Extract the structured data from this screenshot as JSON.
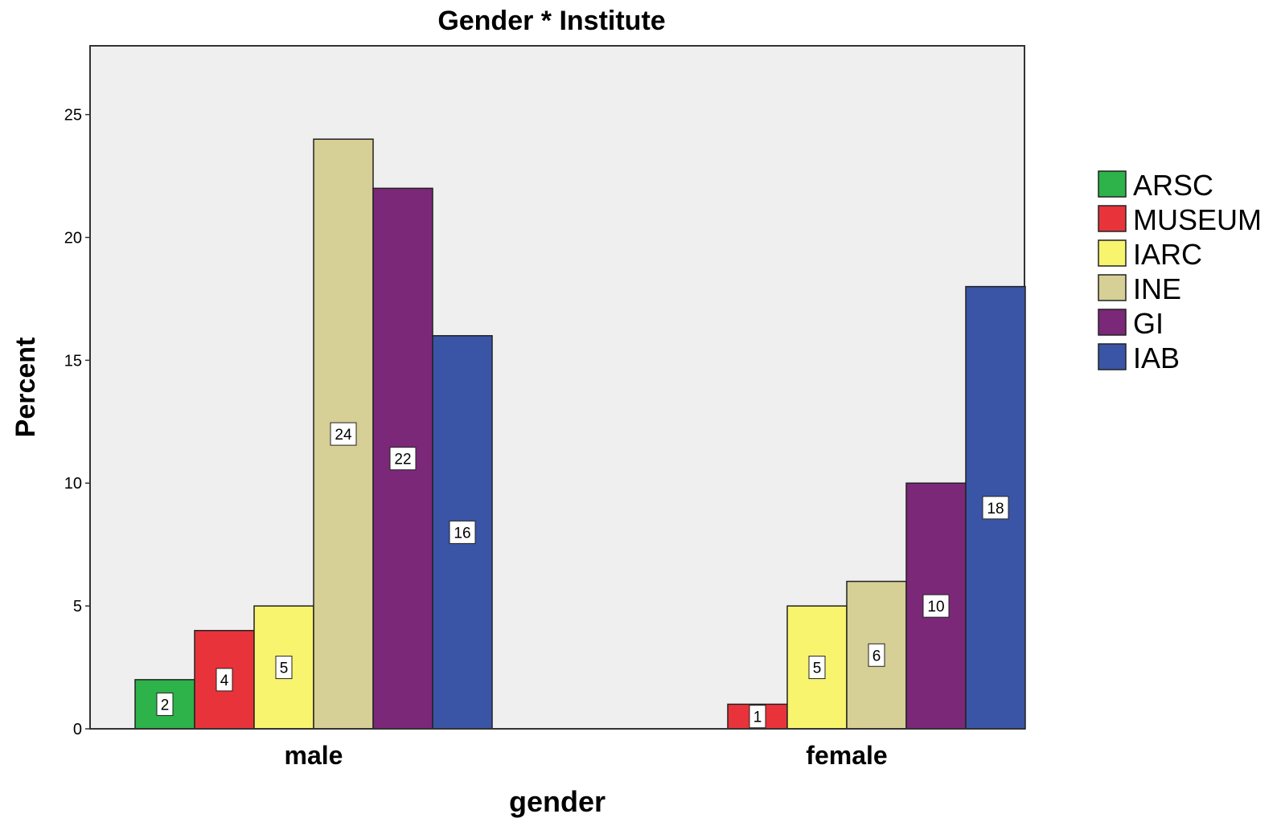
{
  "chart_data": {
    "type": "bar",
    "title": "Gender * Institute",
    "xlabel": "gender",
    "ylabel": "Percent",
    "categories": [
      "male",
      "female"
    ],
    "ylim": [
      0,
      27.8
    ],
    "yticks": [
      0,
      5,
      10,
      15,
      20,
      25
    ],
    "grid": false,
    "legend_position": "right",
    "series": [
      {
        "name": "ARSC",
        "color": "#2db34a",
        "values": [
          2,
          null
        ]
      },
      {
        "name": "MUSEUM",
        "color": "#e8333b",
        "values": [
          4,
          1
        ]
      },
      {
        "name": "IARC",
        "color": "#f8f46e",
        "values": [
          5,
          5
        ]
      },
      {
        "name": "INE",
        "color": "#d6cf96",
        "values": [
          24,
          6
        ]
      },
      {
        "name": "GI",
        "color": "#7b2878",
        "values": [
          22,
          10
        ]
      },
      {
        "name": "IAB",
        "color": "#3a55a6",
        "values": [
          16,
          18
        ]
      }
    ],
    "plot_background": "#efefef"
  }
}
